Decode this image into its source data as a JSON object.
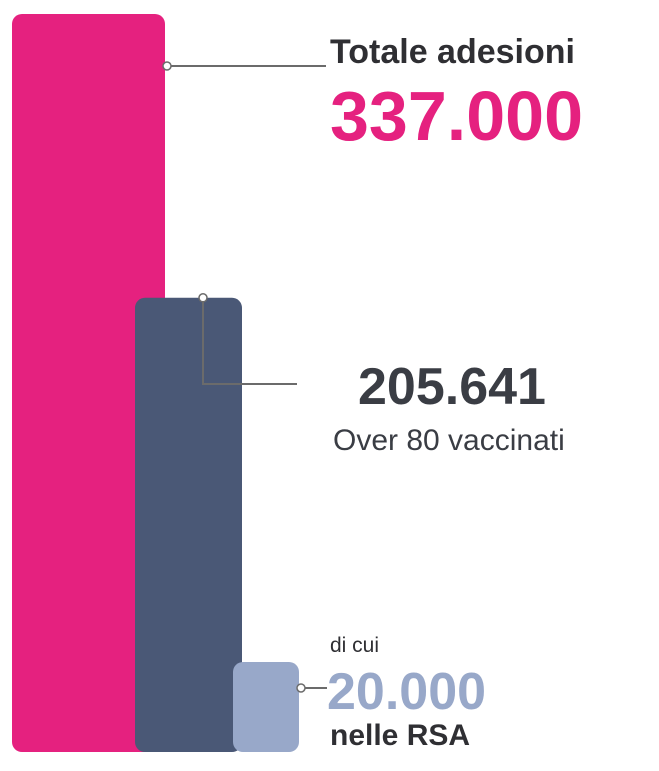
{
  "chart_data": {
    "type": "bar",
    "bars": [
      {
        "key": "totale",
        "label": "Totale adesioni",
        "value": 337000,
        "value_text": "337.000",
        "color": "#E5217F"
      },
      {
        "key": "over80",
        "label": "Over 80 vaccinati",
        "value": 205641,
        "value_text": "205.641",
        "color": "#4A5876"
      },
      {
        "key": "rsa",
        "prefix": "di cui",
        "label": "nelle RSA",
        "value": 20000,
        "value_text": "20.000",
        "color": "#98A8C9"
      }
    ],
    "ylim": [
      0,
      337000
    ]
  }
}
